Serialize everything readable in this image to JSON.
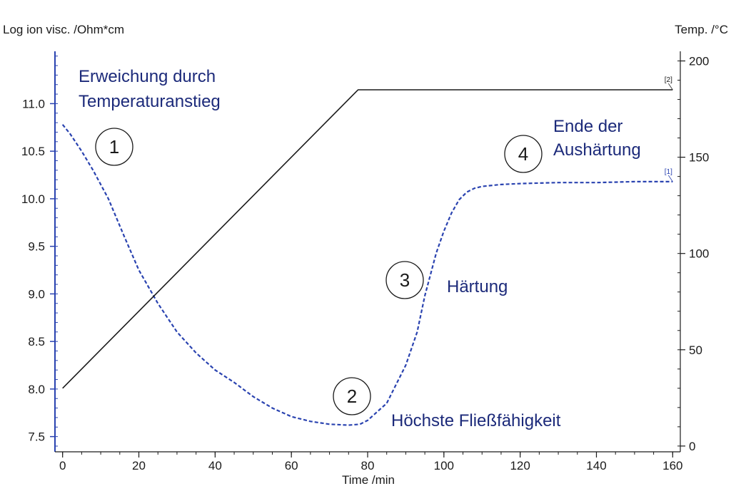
{
  "chart_data": {
    "type": "line",
    "xlabel": "Time /min",
    "ylabel_left": "Log ion visc. /Ohm*cm",
    "ylabel_right": "Temp. /°C",
    "xlim": [
      -2,
      162
    ],
    "x_ticks": [
      0,
      20,
      40,
      60,
      80,
      100,
      120,
      140,
      160
    ],
    "ylim_left": [
      7.34,
      11.55
    ],
    "y_ticks_left": [
      7.5,
      8.0,
      8.5,
      9.0,
      9.5,
      10.0,
      10.5,
      11.0
    ],
    "y_tick_labels_left": [
      "7.5",
      "8.0",
      "8.5",
      "9.0",
      "9.5",
      "10.0",
      "10.5",
      "11.0"
    ],
    "ylim_right": [
      -3,
      205
    ],
    "y_ticks_right": [
      0,
      50,
      100,
      150,
      200
    ],
    "grid": false,
    "series": [
      {
        "axis": "left",
        "style": "dashed",
        "color": "#2a43b0",
        "end_tag": "[1]",
        "x": [
          0,
          2,
          5,
          8,
          12,
          16,
          20,
          25,
          30,
          35,
          40,
          45,
          50,
          55,
          60,
          65,
          70,
          75,
          78,
          80,
          85,
          90,
          93,
          95,
          98,
          100,
          102,
          104,
          106,
          108,
          110,
          115,
          120,
          130,
          140,
          150,
          160
        ],
        "y": [
          10.78,
          10.68,
          10.5,
          10.3,
          10.0,
          9.62,
          9.25,
          8.9,
          8.6,
          8.38,
          8.2,
          8.07,
          7.92,
          7.8,
          7.71,
          7.66,
          7.63,
          7.62,
          7.63,
          7.67,
          7.85,
          8.25,
          8.6,
          8.98,
          9.43,
          9.66,
          9.85,
          9.99,
          10.07,
          10.11,
          10.13,
          10.15,
          10.16,
          10.17,
          10.17,
          10.18,
          10.18
        ]
      },
      {
        "axis": "right",
        "style": "solid",
        "color": "#1a1a1a",
        "end_tag": "[2]",
        "x": [
          0,
          77.5,
          160
        ],
        "y": [
          30,
          185,
          185
        ]
      }
    ],
    "annotations": [
      {
        "text_lines": [
          "Erweichung durch",
          "Temperaturanstieg"
        ],
        "color": "#1c2a7a"
      },
      {
        "text_lines": [
          "Höchste Fließfähigkeit"
        ],
        "color": "#1c2a7a"
      },
      {
        "text_lines": [
          "Härtung"
        ],
        "color": "#1c2a7a"
      },
      {
        "text_lines": [
          "Ende der",
          "Aushärtung"
        ],
        "color": "#1c2a7a"
      }
    ],
    "step_markers": [
      "1",
      "2",
      "3",
      "4"
    ]
  }
}
